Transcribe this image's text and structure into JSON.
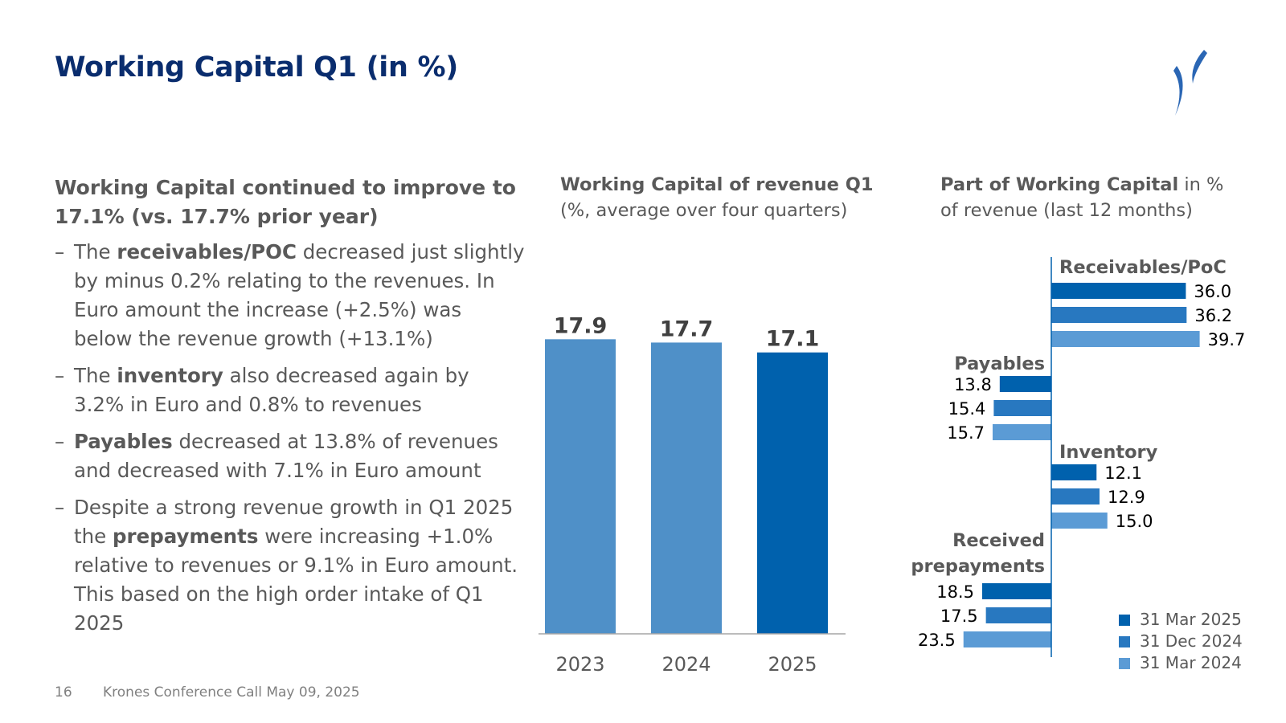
{
  "page": {
    "title": "Working Capital Q1 (in %)",
    "headline": "Working Capital continued to improve to 17.1% (vs. 17.7% prior year)",
    "footer_page": "16",
    "footer_text": "Krones Conference Call May 09, 2025"
  },
  "bullets": [
    {
      "dash": "–",
      "pre": "The ",
      "bold": "receivables/POC",
      "post": " decreased just slightly by minus 0.2% relating to the revenues. In Euro amount the increase (+2.5%) was below the revenue growth (+13.1%)"
    },
    {
      "dash": "–",
      "pre": "The ",
      "bold": "inventory",
      "post": " also decreased again by 3.2% in Euro and 0.8% to revenues"
    },
    {
      "dash": "–",
      "pre": "",
      "bold": "Payables",
      "post": " decreased at 13.8% of revenues and decreased with 7.1% in Euro amount"
    },
    {
      "dash": "–",
      "pre": "Despite a strong revenue growth in Q1 2025 the ",
      "bold": "prepayments",
      "post": " were increasing +1.0% relative to revenues or 9.1% in Euro amount. This based on the high order intake of Q1 2025"
    }
  ],
  "colors": {
    "dark": "#0061ad",
    "mid": "#2878c0",
    "light": "#5b9bd5",
    "bar_light": "#4f90c8",
    "title": "#0a2d6e",
    "text": "#595959",
    "axis": "#a6a6a6"
  },
  "chart_data": [
    {
      "type": "bar",
      "title_bold": "Working Capital of revenue Q1",
      "subtitle": "(%, average over four quarters)",
      "categories": [
        "2023",
        "2024",
        "2025"
      ],
      "values": [
        17.9,
        17.7,
        17.1
      ],
      "labels": [
        "17.9",
        "17.7",
        "17.1"
      ],
      "ylim": [
        0,
        20
      ]
    },
    {
      "type": "bar",
      "orientation": "horizontal",
      "title_bold": "Part of Working Capital",
      "title_rest": " in %",
      "subtitle": "of revenue (last 12 months)",
      "series_names": [
        "31 Mar 2025",
        "31 Dec 2024",
        "31 Mar 2024"
      ],
      "groups": [
        {
          "name": "Receivables/PoC",
          "direction": "positive",
          "values": [
            36.0,
            36.2,
            39.7
          ],
          "labels": [
            "36.0",
            "36.2",
            "39.7"
          ]
        },
        {
          "name": "Payables",
          "direction": "negative",
          "values": [
            13.8,
            15.4,
            15.7
          ],
          "labels": [
            "13.8",
            "15.4",
            "15.7"
          ]
        },
        {
          "name": "Inventory",
          "direction": "positive",
          "values": [
            12.1,
            12.9,
            15.0
          ],
          "labels": [
            "12.1",
            "12.9",
            "15.0"
          ]
        },
        {
          "name_lines": [
            "Received",
            "prepayments"
          ],
          "direction": "negative",
          "values": [
            18.5,
            17.5,
            23.5
          ],
          "labels": [
            "18.5",
            "17.5",
            "23.5"
          ]
        }
      ]
    }
  ]
}
